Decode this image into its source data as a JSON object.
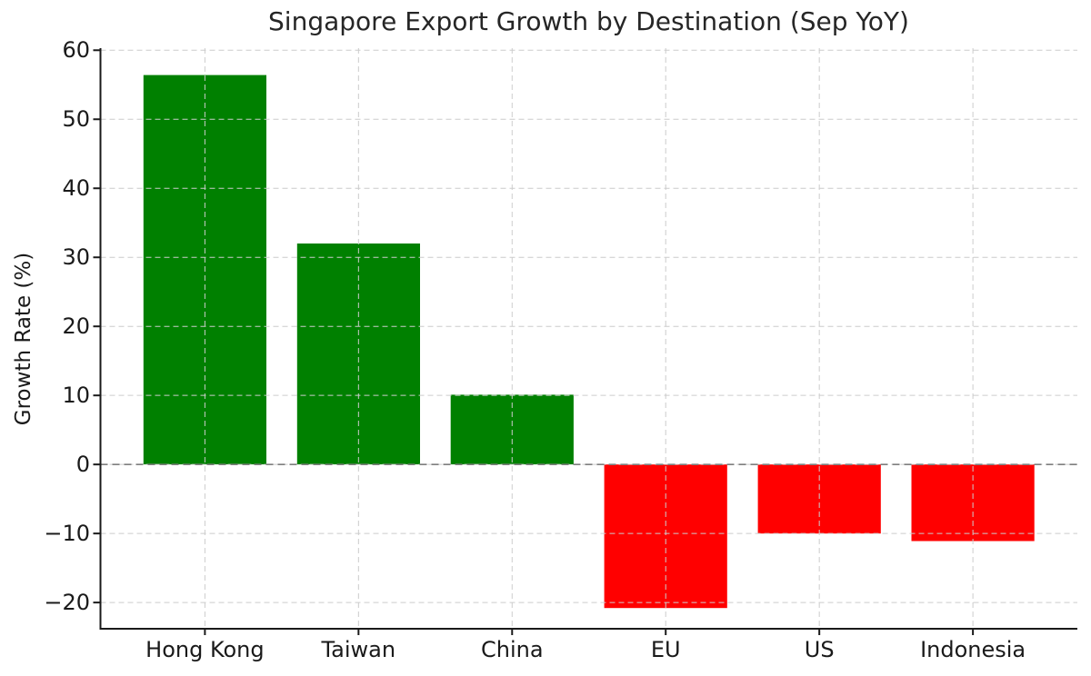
{
  "chart_data": {
    "type": "bar",
    "title": "Singapore Export Growth by Destination (Sep YoY)",
    "ylabel": "Growth Rate (%)",
    "xlabel": "",
    "categories": [
      "Hong Kong",
      "Taiwan",
      "China",
      "EU",
      "US",
      "Indonesia"
    ],
    "values": [
      56.4,
      32.0,
      10.1,
      -20.8,
      -10.0,
      -11.1
    ],
    "yticks": [
      -20,
      -10,
      0,
      10,
      20,
      30,
      40,
      50,
      60
    ],
    "ylim": [
      -23.8,
      60.3
    ],
    "bar_width": 0.8,
    "grid": true,
    "grid_style": "dashed",
    "zero_line": true,
    "legend": "none",
    "colors": {
      "positive": "#008000",
      "negative": "#ff0000",
      "grid": "#cccccc",
      "zero_line": "#7f7f7f",
      "axis": "#1a1a1a",
      "text": "#1a1a1a",
      "title": "#262626",
      "background": "#ffffff"
    }
  }
}
